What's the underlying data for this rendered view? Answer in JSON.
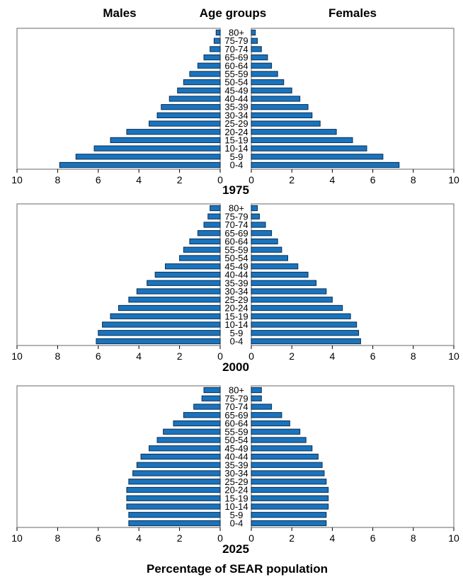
{
  "header": {
    "males": "Males",
    "age_groups": "Age groups",
    "females": "Females"
  },
  "xlabel": "Percentage of SEAR population",
  "colors": {
    "bar_fill": "#1a73bd",
    "bar_stroke": "#0b2f52",
    "frame": "#8a8a8a"
  },
  "chart_data": [
    {
      "type": "bar",
      "orientation": "horizontal",
      "title": "1975",
      "categories": [
        "80+",
        "75-79",
        "70-74",
        "65-69",
        "60-64",
        "55-59",
        "50-54",
        "45-49",
        "40-44",
        "35-39",
        "30-34",
        "25-29",
        "20-24",
        "15-19",
        "10-14",
        "5-9",
        "0-4"
      ],
      "series": [
        {
          "name": "Males",
          "values": [
            0.2,
            0.3,
            0.5,
            0.8,
            1.1,
            1.5,
            1.8,
            2.1,
            2.5,
            2.9,
            3.1,
            3.5,
            4.6,
            5.4,
            6.2,
            7.1,
            7.9
          ]
        },
        {
          "name": "Females",
          "values": [
            0.2,
            0.3,
            0.5,
            0.8,
            1.0,
            1.3,
            1.6,
            2.0,
            2.4,
            2.8,
            3.0,
            3.4,
            4.2,
            5.0,
            5.7,
            6.5,
            7.3
          ]
        }
      ],
      "xlim": [
        0,
        10
      ],
      "xticks": [
        10,
        8,
        6,
        4,
        2,
        0
      ]
    },
    {
      "type": "bar",
      "orientation": "horizontal",
      "title": "2000",
      "categories": [
        "80+",
        "75-79",
        "70-74",
        "65-69",
        "60-64",
        "55-59",
        "50-54",
        "45-49",
        "40-44",
        "35-39",
        "30-34",
        "25-29",
        "20-24",
        "15-19",
        "10-14",
        "5-9",
        "0-4"
      ],
      "series": [
        {
          "name": "Males",
          "values": [
            0.5,
            0.6,
            0.8,
            1.1,
            1.5,
            1.8,
            2.0,
            2.7,
            3.2,
            3.6,
            4.1,
            4.5,
            5.0,
            5.4,
            5.8,
            6.0,
            6.1
          ]
        },
        {
          "name": "Females",
          "values": [
            0.3,
            0.4,
            0.7,
            1.0,
            1.3,
            1.5,
            1.8,
            2.3,
            2.8,
            3.2,
            3.7,
            4.0,
            4.5,
            4.9,
            5.2,
            5.3,
            5.4
          ]
        }
      ],
      "xlim": [
        0,
        10
      ],
      "xticks": [
        10,
        8,
        6,
        4,
        2,
        0
      ]
    },
    {
      "type": "bar",
      "orientation": "horizontal",
      "title": "2025",
      "categories": [
        "80+",
        "75-79",
        "70-74",
        "65-69",
        "60-64",
        "55-59",
        "50-54",
        "45-49",
        "40-44",
        "35-39",
        "30-34",
        "25-29",
        "20-24",
        "15-19",
        "10-14",
        "5-9",
        "0-4"
      ],
      "series": [
        {
          "name": "Males",
          "values": [
            0.8,
            0.9,
            1.3,
            1.8,
            2.3,
            2.8,
            3.1,
            3.5,
            3.9,
            4.1,
            4.3,
            4.5,
            4.6,
            4.6,
            4.6,
            4.5,
            4.5
          ]
        },
        {
          "name": "Females",
          "values": [
            0.5,
            0.5,
            1.0,
            1.5,
            1.9,
            2.4,
            2.7,
            3.0,
            3.3,
            3.5,
            3.6,
            3.7,
            3.8,
            3.8,
            3.8,
            3.7,
            3.7
          ]
        }
      ],
      "xlim": [
        0,
        10
      ],
      "xticks": [
        10,
        8,
        6,
        4,
        2,
        0
      ]
    }
  ]
}
